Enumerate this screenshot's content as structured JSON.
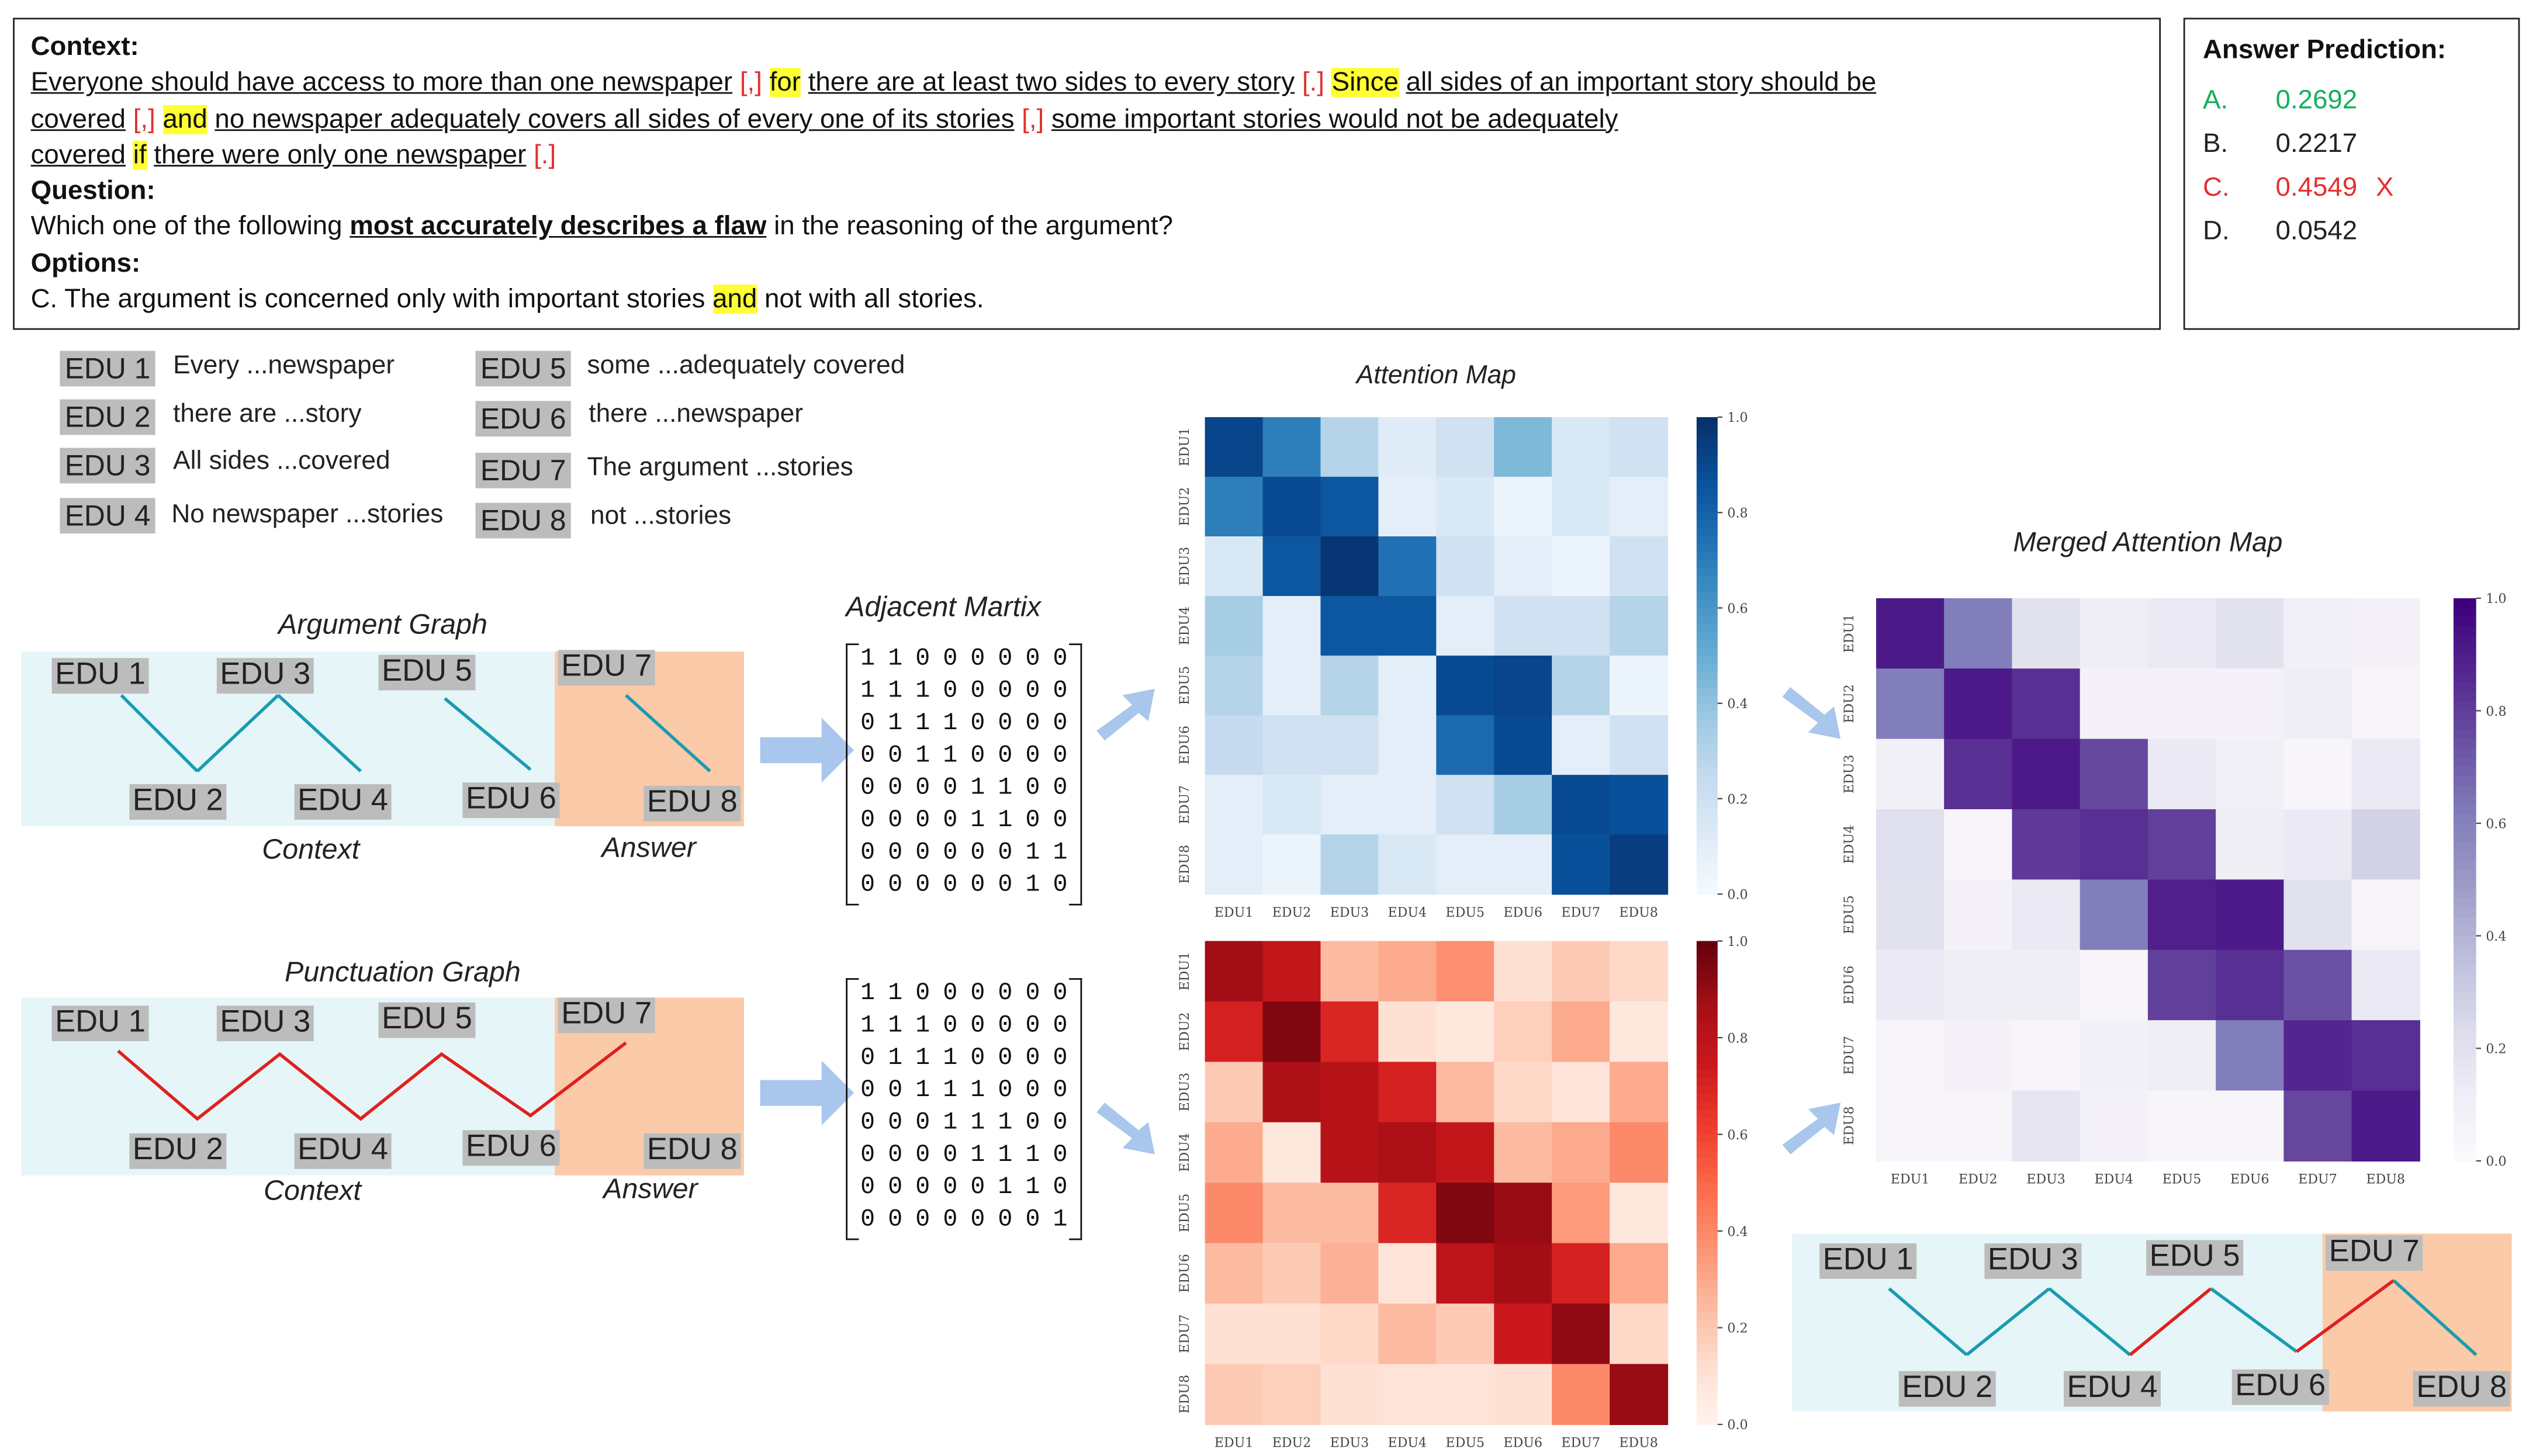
{
  "context_box": {
    "context_label": "Context:",
    "line1": [
      {
        "t": "Everyone should have access to more than one newspaper",
        "c": "u"
      },
      {
        "t": " ",
        "c": ""
      },
      {
        "t": "[,]",
        "c": "rb"
      },
      {
        "t": " ",
        "c": ""
      },
      {
        "t": "for",
        "c": "hl"
      },
      {
        "t": " ",
        "c": ""
      },
      {
        "t": "there are at least two sides to every story",
        "c": "u"
      },
      {
        "t": " ",
        "c": ""
      },
      {
        "t": "[.]",
        "c": "rb"
      },
      {
        "t": " ",
        "c": ""
      },
      {
        "t": "Since",
        "c": "hl"
      },
      {
        "t": " ",
        "c": ""
      },
      {
        "t": "all sides of an important story should be",
        "c": "u"
      }
    ],
    "line2": [
      {
        "t": "covered",
        "c": "u"
      },
      {
        "t": " ",
        "c": ""
      },
      {
        "t": "[,]",
        "c": "rb"
      },
      {
        "t": " ",
        "c": ""
      },
      {
        "t": "and",
        "c": "hl"
      },
      {
        "t": " ",
        "c": ""
      },
      {
        "t": "no newspaper adequately covers all sides of every one of its stories",
        "c": "u"
      },
      {
        "t": " ",
        "c": ""
      },
      {
        "t": "[,]",
        "c": "rb"
      },
      {
        "t": " ",
        "c": ""
      },
      {
        "t": "some important stories would not be adequately",
        "c": "u"
      }
    ],
    "line3": [
      {
        "t": "covered",
        "c": "u"
      },
      {
        "t": " ",
        "c": ""
      },
      {
        "t": "if",
        "c": "hl"
      },
      {
        "t": " ",
        "c": ""
      },
      {
        "t": "there were only one newspaper",
        "c": "u"
      },
      {
        "t": " ",
        "c": ""
      },
      {
        "t": "[.]",
        "c": "rb"
      }
    ],
    "question_label": "Question:",
    "question_pre": "Which one of the following ",
    "question_bold": "most accurately describes a flaw",
    "question_post": " in the reasoning of the argument?",
    "options_label": "Options:",
    "option_pre": "C. The argument is concerned only with important stories ",
    "option_hl": "and",
    "option_post": " not with all stories."
  },
  "answer_box": {
    "title": "Answer Prediction:",
    "rows": [
      {
        "letter": "A.",
        "value": "0.2692",
        "mark": "",
        "color": "#12b05a"
      },
      {
        "letter": "B.",
        "value": "0.2217",
        "mark": "",
        "color": "#222222"
      },
      {
        "letter": "C.",
        "value": "0.4549",
        "mark": "X",
        "color": "#e53030"
      },
      {
        "letter": "D.",
        "value": "0.0542",
        "mark": "",
        "color": "#222222"
      }
    ]
  },
  "edu_legend": [
    {
      "label": "EDU 1",
      "desc": "Every ...newspaper"
    },
    {
      "label": "EDU 2",
      "desc": "there are ...story"
    },
    {
      "label": "EDU 3",
      "desc": "All sides ...covered"
    },
    {
      "label": "EDU 4",
      "desc": "No newspaper ...stories"
    },
    {
      "label": "EDU 5",
      "desc": "some ...adequately covered"
    },
    {
      "label": "EDU 6",
      "desc": "there ...newspaper"
    },
    {
      "label": "EDU 7",
      "desc": "The argument ...stories"
    },
    {
      "label": "EDU 8",
      "desc": "not ...stories"
    }
  ],
  "argument_graph": {
    "title": "Argument Graph",
    "nodes": [
      "EDU 1",
      "EDU 2",
      "EDU 3",
      "EDU 4",
      "EDU 5",
      "EDU 6",
      "EDU 7",
      "EDU 8"
    ],
    "context_label": "Context",
    "answer_label": "Answer",
    "edge_color": "#1a9bb0"
  },
  "punctuation_graph": {
    "title": "Punctuation Graph",
    "nodes": [
      "EDU 1",
      "EDU 2",
      "EDU 3",
      "EDU 4",
      "EDU 5",
      "EDU 6",
      "EDU 7",
      "EDU 8"
    ],
    "context_label": "Context",
    "answer_label": "Answer",
    "edge_color": "#e02020"
  },
  "merged_graph": {
    "nodes": [
      "EDU 1",
      "EDU 2",
      "EDU 3",
      "EDU 4",
      "EDU 5",
      "EDU 6",
      "EDU 7",
      "EDU 8"
    ]
  },
  "matrix_title": "Adjacent Martix",
  "argument_matrix": [
    "1 1 0 0 0 0 0 0",
    "1 1 1 0 0 0 0 0",
    "0 1 1 1 0 0 0 0",
    "0 0 1 1 0 0 0 0",
    "0 0 0 0 1 1 0 0",
    "0 0 0 0 1 1 0 0",
    "0 0 0 0 0 0 1 1",
    "0 0 0 0 0 0 1 0"
  ],
  "punctuation_matrix": [
    "1 1 0 0 0 0 0 0",
    "1 1 1 0 0 0 0 0",
    "0 1 1 1 0 0 0 0",
    "0 0 1 1 1 0 0 0",
    "0 0 0 1 1 1 0 0",
    "0 0 0 0 1 1 1 0",
    "0 0 0 0 0 1 1 0",
    "0 0 0 0 0 0 0 1"
  ],
  "colors": {
    "context_bg": "#e6f6f8",
    "answer_bg": "#fbcaa8",
    "arrow": "#a9c6ec",
    "node_bg": "#bcbcbc"
  },
  "chart_data": [
    {
      "type": "heatmap",
      "title": "Attention Map",
      "colormap": "Blues",
      "x_labels": [
        "EDU1",
        "EDU2",
        "EDU3",
        "EDU4",
        "EDU5",
        "EDU6",
        "EDU7",
        "EDU8"
      ],
      "y_labels": [
        "EDU1",
        "EDU2",
        "EDU3",
        "EDU4",
        "EDU5",
        "EDU6",
        "EDU7",
        "EDU8"
      ],
      "colorbar_ticks": [
        "0.0",
        "0.2",
        "0.4",
        "0.6",
        "0.8",
        "1.0"
      ],
      "vrange": [
        0,
        1
      ],
      "values": [
        [
          0.92,
          0.7,
          0.3,
          0.12,
          0.2,
          0.45,
          0.15,
          0.2
        ],
        [
          0.7,
          0.9,
          0.85,
          0.1,
          0.15,
          0.06,
          0.15,
          0.1
        ],
        [
          0.15,
          0.85,
          0.98,
          0.75,
          0.2,
          0.1,
          0.05,
          0.2
        ],
        [
          0.35,
          0.1,
          0.85,
          0.85,
          0.1,
          0.2,
          0.2,
          0.3
        ],
        [
          0.3,
          0.1,
          0.3,
          0.1,
          0.9,
          0.92,
          0.3,
          0.05
        ],
        [
          0.25,
          0.2,
          0.2,
          0.1,
          0.78,
          0.9,
          0.1,
          0.2
        ],
        [
          0.1,
          0.15,
          0.1,
          0.1,
          0.2,
          0.35,
          0.9,
          0.88
        ],
        [
          0.1,
          0.05,
          0.3,
          0.15,
          0.1,
          0.1,
          0.88,
          0.95
        ]
      ]
    },
    {
      "type": "heatmap",
      "title": "",
      "colormap": "Reds",
      "x_labels": [
        "EDU1",
        "EDU2",
        "EDU3",
        "EDU4",
        "EDU5",
        "EDU6",
        "EDU7",
        "EDU8"
      ],
      "y_labels": [
        "EDU1",
        "EDU2",
        "EDU3",
        "EDU4",
        "EDU5",
        "EDU6",
        "EDU7",
        "EDU8"
      ],
      "colorbar_ticks": [
        "0.0",
        "0.2",
        "0.4",
        "0.6",
        "0.8",
        "1.0"
      ],
      "vrange": [
        0,
        1
      ],
      "values": [
        [
          0.88,
          0.78,
          0.25,
          0.3,
          0.38,
          0.12,
          0.2,
          0.15
        ],
        [
          0.72,
          0.95,
          0.7,
          0.12,
          0.08,
          0.18,
          0.3,
          0.08
        ],
        [
          0.2,
          0.85,
          0.82,
          0.72,
          0.25,
          0.15,
          0.1,
          0.3
        ],
        [
          0.3,
          0.08,
          0.82,
          0.85,
          0.78,
          0.25,
          0.3,
          0.4
        ],
        [
          0.4,
          0.25,
          0.25,
          0.7,
          0.95,
          0.9,
          0.35,
          0.08
        ],
        [
          0.25,
          0.2,
          0.28,
          0.1,
          0.8,
          0.88,
          0.72,
          0.3
        ],
        [
          0.12,
          0.12,
          0.15,
          0.25,
          0.2,
          0.75,
          0.92,
          0.15
        ],
        [
          0.2,
          0.18,
          0.12,
          0.1,
          0.1,
          0.12,
          0.4,
          0.9
        ]
      ]
    },
    {
      "type": "heatmap",
      "title": "Merged Attention Map",
      "colormap": "Purples",
      "x_labels": [
        "EDU1",
        "EDU2",
        "EDU3",
        "EDU4",
        "EDU5",
        "EDU6",
        "EDU7",
        "EDU8"
      ],
      "y_labels": [
        "EDU1",
        "EDU2",
        "EDU3",
        "EDU4",
        "EDU5",
        "EDU6",
        "EDU7",
        "EDU8"
      ],
      "colorbar_ticks": [
        "0.0",
        "0.2",
        "0.4",
        "0.6",
        "0.8",
        "1.0"
      ],
      "vrange": [
        0,
        1
      ],
      "values": [
        [
          0.92,
          0.62,
          0.2,
          0.12,
          0.15,
          0.2,
          0.1,
          0.08
        ],
        [
          0.62,
          0.92,
          0.85,
          0.08,
          0.08,
          0.08,
          0.12,
          0.05
        ],
        [
          0.1,
          0.85,
          0.92,
          0.78,
          0.15,
          0.1,
          0.05,
          0.15
        ],
        [
          0.22,
          0.05,
          0.82,
          0.85,
          0.8,
          0.12,
          0.15,
          0.28
        ],
        [
          0.2,
          0.08,
          0.15,
          0.62,
          0.9,
          0.92,
          0.2,
          0.05
        ],
        [
          0.15,
          0.12,
          0.12,
          0.05,
          0.8,
          0.85,
          0.75,
          0.15
        ],
        [
          0.05,
          0.08,
          0.05,
          0.1,
          0.12,
          0.62,
          0.88,
          0.85
        ],
        [
          0.05,
          0.05,
          0.18,
          0.08,
          0.05,
          0.05,
          0.78,
          0.92
        ]
      ]
    }
  ]
}
